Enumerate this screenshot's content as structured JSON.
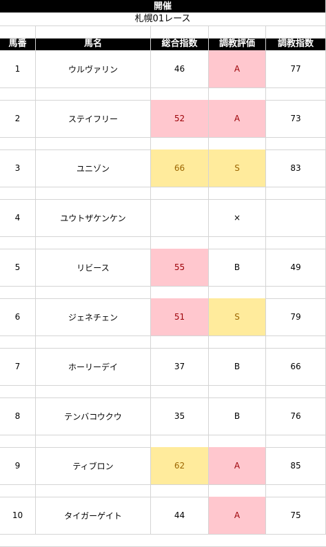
{
  "sheet": {
    "title": "開催",
    "race": "札幌01レース"
  },
  "columns": [
    "馬番",
    "馬名",
    "総合指数",
    "調教評価",
    "調教指数"
  ],
  "colors": {
    "pink_fill": "#ffc7ce",
    "pink_text": "#9c0006",
    "yellow_fill": "#ffeb9c",
    "yellow_text": "#9c6500"
  },
  "rows": [
    {
      "num": "1",
      "name": "ウルヴァリン",
      "total": "46",
      "total_hl": "",
      "eval": "A",
      "eval_hl": "pink",
      "train": "77"
    },
    {
      "num": "2",
      "name": "ステイフリー",
      "total": "52",
      "total_hl": "pink",
      "eval": "A",
      "eval_hl": "pink",
      "train": "73"
    },
    {
      "num": "3",
      "name": "ユニゾン",
      "total": "66",
      "total_hl": "yellow",
      "eval": "S",
      "eval_hl": "yellow",
      "train": "83"
    },
    {
      "num": "4",
      "name": "ユウトザケンケン",
      "total": "",
      "total_hl": "",
      "eval": "×",
      "eval_hl": "",
      "train": ""
    },
    {
      "num": "5",
      "name": "リビース",
      "total": "55",
      "total_hl": "pink",
      "eval": "B",
      "eval_hl": "",
      "train": "49"
    },
    {
      "num": "6",
      "name": "ジェネチェン",
      "total": "51",
      "total_hl": "pink",
      "eval": "S",
      "eval_hl": "yellow",
      "train": "79"
    },
    {
      "num": "7",
      "name": "ホーリーデイ",
      "total": "37",
      "total_hl": "",
      "eval": "B",
      "eval_hl": "",
      "train": "66"
    },
    {
      "num": "8",
      "name": "テンバコウクウ",
      "total": "35",
      "total_hl": "",
      "eval": "B",
      "eval_hl": "",
      "train": "76"
    },
    {
      "num": "9",
      "name": "ティブロン",
      "total": "62",
      "total_hl": "yellow",
      "eval": "A",
      "eval_hl": "pink",
      "train": "85"
    },
    {
      "num": "10",
      "name": "タイガーゲイト",
      "total": "44",
      "total_hl": "",
      "eval": "A",
      "eval_hl": "pink",
      "train": "75"
    }
  ]
}
